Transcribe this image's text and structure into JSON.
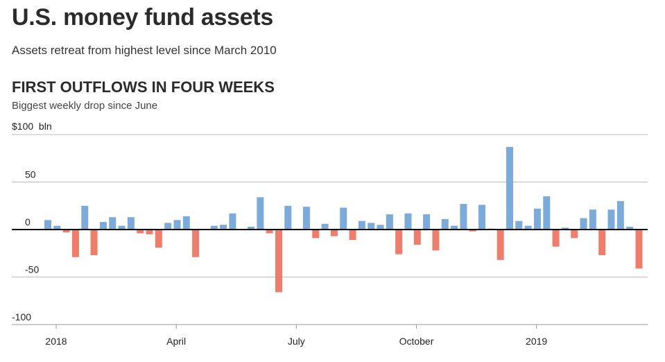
{
  "header": {
    "title": "U.S. money fund assets",
    "subtitle": "Assets retreat from highest level since March 2010"
  },
  "chart_data": {
    "type": "bar",
    "title": "FIRST OUTFLOWS IN FOUR WEEKS",
    "subtitle": "Biggest weekly drop since June",
    "unit_label": "$100  bln",
    "xlabel": "",
    "ylabel": "",
    "ylim": [
      -100,
      100
    ],
    "yticks": [
      {
        "value": 50,
        "label": "50"
      },
      {
        "value": 0,
        "label": "0"
      },
      {
        "value": -50,
        "label": "-50"
      },
      {
        "value": -100,
        "label": "-100"
      }
    ],
    "xticks": [
      {
        "week": 0,
        "label": "2018"
      },
      {
        "week": 13,
        "label": "April"
      },
      {
        "week": 26,
        "label": "July"
      },
      {
        "week": 39,
        "label": "October"
      },
      {
        "week": 52,
        "label": "2019"
      }
    ],
    "grid": true,
    "colors": {
      "positive": "#7aabdb",
      "negative": "#f07c6c",
      "grid": "#bbbbbb",
      "zero": "#000000"
    },
    "values": [
      10,
      4,
      -3,
      -29,
      25,
      -27,
      8,
      13,
      4,
      13,
      -4,
      -5,
      -19,
      7,
      10,
      14,
      -29,
      0,
      4,
      5,
      17,
      0,
      3,
      34,
      -4,
      -66,
      25,
      0,
      24,
      -9,
      6,
      -7,
      23,
      -11,
      9,
      7,
      5,
      16,
      -26,
      17,
      -16,
      16,
      -22,
      11,
      4,
      27,
      -2,
      26,
      1,
      -32,
      87,
      9,
      4,
      22,
      35,
      -18,
      2,
      -9,
      12,
      21,
      -27,
      21,
      30,
      3,
      -41
    ]
  }
}
